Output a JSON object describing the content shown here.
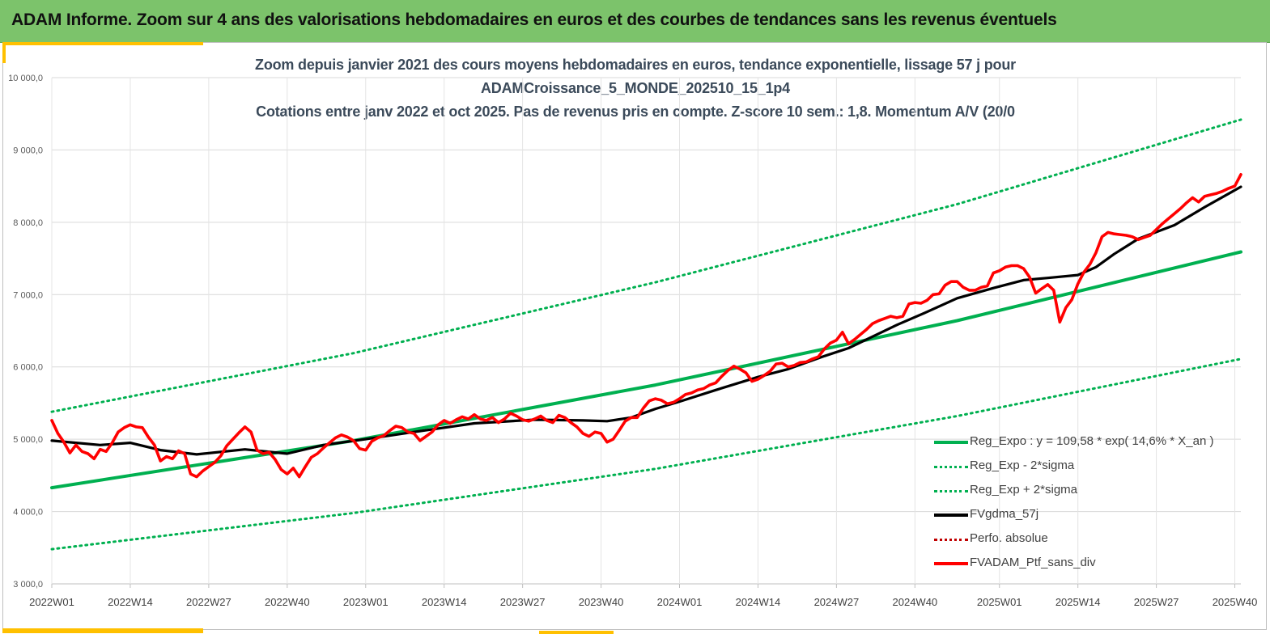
{
  "header": {
    "title": "ADAM Informe. Zoom sur 4 ans des valorisations hebdomadaires en euros et des courbes de tendances sans les revenus éventuels"
  },
  "colors": {
    "banner": "#7cc36b",
    "accent": "#ffc000",
    "trend": "#00b050",
    "smooth": "#000000",
    "portfolio": "#ff0000",
    "perf": "#c00000"
  },
  "chart_data": {
    "type": "line",
    "title_lines": [
      "Zoom depuis janvier 2021 des cours moyens hebdomadaires  en euros, tendance exponentielle, lissage 57 j pour",
      "ADAMCroissance_5_MONDE_202510_15_1p4",
      "Cotations entre janv 2022 et oct 2025. Pas de revenus pris en compte. Z-score 10 sem.: 1,8. Momentum A/V (20/0"
    ],
    "ylim": [
      3000,
      10000
    ],
    "yticks": [
      3000,
      4000,
      5000,
      6000,
      7000,
      8000,
      9000,
      10000
    ],
    "ytick_labels": [
      "3 000,0",
      "4 000,0",
      "5 000,0",
      "6 000,0",
      "7 000,0",
      "8 000,0",
      "9 000,0",
      "10 000,0"
    ],
    "x_index_range": [
      0,
      197
    ],
    "x_ticks": [
      {
        "index": 0,
        "label": "2022W01"
      },
      {
        "index": 13,
        "label": "2022W14"
      },
      {
        "index": 26,
        "label": "2022W27"
      },
      {
        "index": 39,
        "label": "2022W40"
      },
      {
        "index": 52,
        "label": "2023W01"
      },
      {
        "index": 65,
        "label": "2023W14"
      },
      {
        "index": 78,
        "label": "2023W27"
      },
      {
        "index": 91,
        "label": "2023W40"
      },
      {
        "index": 104,
        "label": "2024W01"
      },
      {
        "index": 117,
        "label": "2024W14"
      },
      {
        "index": 130,
        "label": "2024W27"
      },
      {
        "index": 143,
        "label": "2024W40"
      },
      {
        "index": 157,
        "label": "2025W01"
      },
      {
        "index": 170,
        "label": "2025W14"
      },
      {
        "index": 183,
        "label": "2025W27"
      },
      {
        "index": 196,
        "label": "2025W40"
      }
    ],
    "legend_position": "bottom-right",
    "series": [
      {
        "name": "Reg_Expo : y = 109,58 * exp( 14,6% *  X_an )",
        "style": "solid",
        "color": "#00b050",
        "points": [
          [
            0,
            4330
          ],
          [
            50,
            4980
          ],
          [
            100,
            5750
          ],
          [
            150,
            6640
          ],
          [
            197,
            7590
          ]
        ]
      },
      {
        "name": "Reg_Exp - 2*sigma",
        "style": "dotted",
        "color": "#00b050",
        "points": [
          [
            0,
            3480
          ],
          [
            50,
            3980
          ],
          [
            100,
            4590
          ],
          [
            150,
            5320
          ],
          [
            197,
            6110
          ]
        ]
      },
      {
        "name": "Reg_Exp + 2*sigma",
        "style": "dotted",
        "color": "#00b050",
        "points": [
          [
            0,
            5380
          ],
          [
            50,
            6190
          ],
          [
            100,
            7170
          ],
          [
            150,
            8250
          ],
          [
            197,
            9420
          ]
        ]
      },
      {
        "name": "FVgdma_57j",
        "style": "solid",
        "color": "#000000",
        "points": [
          [
            0,
            4980
          ],
          [
            8,
            4920
          ],
          [
            13,
            4950
          ],
          [
            18,
            4850
          ],
          [
            24,
            4790
          ],
          [
            32,
            4860
          ],
          [
            39,
            4800
          ],
          [
            45,
            4920
          ],
          [
            52,
            5000
          ],
          [
            60,
            5100
          ],
          [
            70,
            5220
          ],
          [
            80,
            5270
          ],
          [
            88,
            5260
          ],
          [
            92,
            5250
          ],
          [
            96,
            5300
          ],
          [
            100,
            5420
          ],
          [
            104,
            5520
          ],
          [
            110,
            5680
          ],
          [
            117,
            5860
          ],
          [
            122,
            5970
          ],
          [
            128,
            6150
          ],
          [
            132,
            6260
          ],
          [
            136,
            6420
          ],
          [
            140,
            6580
          ],
          [
            145,
            6760
          ],
          [
            150,
            6950
          ],
          [
            156,
            7090
          ],
          [
            161,
            7200
          ],
          [
            165,
            7230
          ],
          [
            170,
            7270
          ],
          [
            173,
            7380
          ],
          [
            176,
            7560
          ],
          [
            180,
            7770
          ],
          [
            186,
            7960
          ],
          [
            191,
            8210
          ],
          [
            197,
            8490
          ]
        ]
      },
      {
        "name": "Perfo. absolue",
        "style": "dotted",
        "color": "#c00000",
        "points": []
      },
      {
        "name": "FVADAM_Ptf_sans_div",
        "style": "solid",
        "color": "#ff0000",
        "points": [
          [
            0,
            5260
          ],
          [
            1,
            5080
          ],
          [
            2,
            4960
          ],
          [
            3,
            4810
          ],
          [
            4,
            4920
          ],
          [
            5,
            4830
          ],
          [
            6,
            4800
          ],
          [
            7,
            4730
          ],
          [
            8,
            4860
          ],
          [
            9,
            4830
          ],
          [
            10,
            4950
          ],
          [
            11,
            5100
          ],
          [
            12,
            5160
          ],
          [
            13,
            5200
          ],
          [
            14,
            5170
          ],
          [
            15,
            5160
          ],
          [
            16,
            5030
          ],
          [
            17,
            4920
          ],
          [
            18,
            4700
          ],
          [
            19,
            4760
          ],
          [
            20,
            4730
          ],
          [
            21,
            4840
          ],
          [
            22,
            4800
          ],
          [
            23,
            4520
          ],
          [
            24,
            4480
          ],
          [
            25,
            4560
          ],
          [
            26,
            4620
          ],
          [
            27,
            4680
          ],
          [
            28,
            4770
          ],
          [
            29,
            4910
          ],
          [
            30,
            5000
          ],
          [
            31,
            5090
          ],
          [
            32,
            5170
          ],
          [
            33,
            5100
          ],
          [
            34,
            4850
          ],
          [
            35,
            4800
          ],
          [
            36,
            4820
          ],
          [
            37,
            4720
          ],
          [
            38,
            4580
          ],
          [
            39,
            4520
          ],
          [
            40,
            4600
          ],
          [
            41,
            4480
          ],
          [
            42,
            4620
          ],
          [
            43,
            4750
          ],
          [
            44,
            4800
          ],
          [
            45,
            4880
          ],
          [
            46,
            4950
          ],
          [
            47,
            5020
          ],
          [
            48,
            5060
          ],
          [
            49,
            5030
          ],
          [
            50,
            4980
          ],
          [
            51,
            4870
          ],
          [
            52,
            4850
          ],
          [
            53,
            4970
          ],
          [
            54,
            5020
          ],
          [
            55,
            5050
          ],
          [
            56,
            5120
          ],
          [
            57,
            5180
          ],
          [
            58,
            5160
          ],
          [
            59,
            5100
          ],
          [
            60,
            5080
          ],
          [
            61,
            4980
          ],
          [
            62,
            5040
          ],
          [
            63,
            5100
          ],
          [
            64,
            5200
          ],
          [
            65,
            5260
          ],
          [
            66,
            5220
          ],
          [
            67,
            5270
          ],
          [
            68,
            5310
          ],
          [
            69,
            5280
          ],
          [
            70,
            5340
          ],
          [
            71,
            5280
          ],
          [
            72,
            5260
          ],
          [
            73,
            5300
          ],
          [
            74,
            5230
          ],
          [
            75,
            5280
          ],
          [
            76,
            5360
          ],
          [
            77,
            5320
          ],
          [
            78,
            5270
          ],
          [
            79,
            5250
          ],
          [
            80,
            5280
          ],
          [
            81,
            5320
          ],
          [
            82,
            5260
          ],
          [
            83,
            5230
          ],
          [
            84,
            5330
          ],
          [
            85,
            5300
          ],
          [
            86,
            5230
          ],
          [
            87,
            5170
          ],
          [
            88,
            5080
          ],
          [
            89,
            5040
          ],
          [
            90,
            5100
          ],
          [
            91,
            5080
          ],
          [
            92,
            4960
          ],
          [
            93,
            5000
          ],
          [
            94,
            5120
          ],
          [
            95,
            5250
          ],
          [
            96,
            5300
          ],
          [
            97,
            5300
          ],
          [
            98,
            5430
          ],
          [
            99,
            5530
          ],
          [
            100,
            5560
          ],
          [
            101,
            5540
          ],
          [
            102,
            5490
          ],
          [
            103,
            5510
          ],
          [
            104,
            5560
          ],
          [
            105,
            5620
          ],
          [
            106,
            5640
          ],
          [
            107,
            5680
          ],
          [
            108,
            5700
          ],
          [
            109,
            5750
          ],
          [
            110,
            5780
          ],
          [
            111,
            5870
          ],
          [
            112,
            5950
          ],
          [
            113,
            6010
          ],
          [
            114,
            5970
          ],
          [
            115,
            5920
          ],
          [
            116,
            5800
          ],
          [
            117,
            5830
          ],
          [
            118,
            5880
          ],
          [
            119,
            5940
          ],
          [
            120,
            6040
          ],
          [
            121,
            6050
          ],
          [
            122,
            6000
          ],
          [
            123,
            6020
          ],
          [
            124,
            6060
          ],
          [
            125,
            6070
          ],
          [
            126,
            6110
          ],
          [
            127,
            6140
          ],
          [
            128,
            6250
          ],
          [
            129,
            6330
          ],
          [
            130,
            6370
          ],
          [
            131,
            6480
          ],
          [
            132,
            6320
          ],
          [
            133,
            6380
          ],
          [
            134,
            6450
          ],
          [
            135,
            6520
          ],
          [
            136,
            6600
          ],
          [
            137,
            6640
          ],
          [
            138,
            6670
          ],
          [
            139,
            6700
          ],
          [
            140,
            6680
          ],
          [
            141,
            6700
          ],
          [
            142,
            6870
          ],
          [
            143,
            6890
          ],
          [
            144,
            6880
          ],
          [
            145,
            6920
          ],
          [
            146,
            7000
          ],
          [
            147,
            7010
          ],
          [
            148,
            7130
          ],
          [
            149,
            7180
          ],
          [
            150,
            7180
          ],
          [
            151,
            7100
          ],
          [
            152,
            7060
          ],
          [
            153,
            7060
          ],
          [
            154,
            7100
          ],
          [
            155,
            7120
          ],
          [
            156,
            7300
          ],
          [
            157,
            7330
          ],
          [
            158,
            7380
          ],
          [
            159,
            7400
          ],
          [
            160,
            7400
          ],
          [
            161,
            7360
          ],
          [
            162,
            7240
          ],
          [
            163,
            7020
          ],
          [
            164,
            7080
          ],
          [
            165,
            7140
          ],
          [
            166,
            7060
          ],
          [
            167,
            6620
          ],
          [
            168,
            6820
          ],
          [
            169,
            6930
          ],
          [
            170,
            7150
          ],
          [
            171,
            7310
          ],
          [
            172,
            7420
          ],
          [
            173,
            7580
          ],
          [
            174,
            7800
          ],
          [
            175,
            7860
          ],
          [
            176,
            7840
          ],
          [
            177,
            7830
          ],
          [
            178,
            7820
          ],
          [
            179,
            7800
          ],
          [
            180,
            7760
          ],
          [
            181,
            7790
          ],
          [
            182,
            7820
          ],
          [
            183,
            7900
          ],
          [
            184,
            7980
          ],
          [
            185,
            8050
          ],
          [
            186,
            8120
          ],
          [
            187,
            8190
          ],
          [
            188,
            8270
          ],
          [
            189,
            8340
          ],
          [
            190,
            8280
          ],
          [
            191,
            8360
          ],
          [
            192,
            8380
          ],
          [
            193,
            8400
          ],
          [
            194,
            8430
          ],
          [
            195,
            8470
          ],
          [
            196,
            8500
          ],
          [
            197,
            8660
          ]
        ]
      }
    ]
  }
}
